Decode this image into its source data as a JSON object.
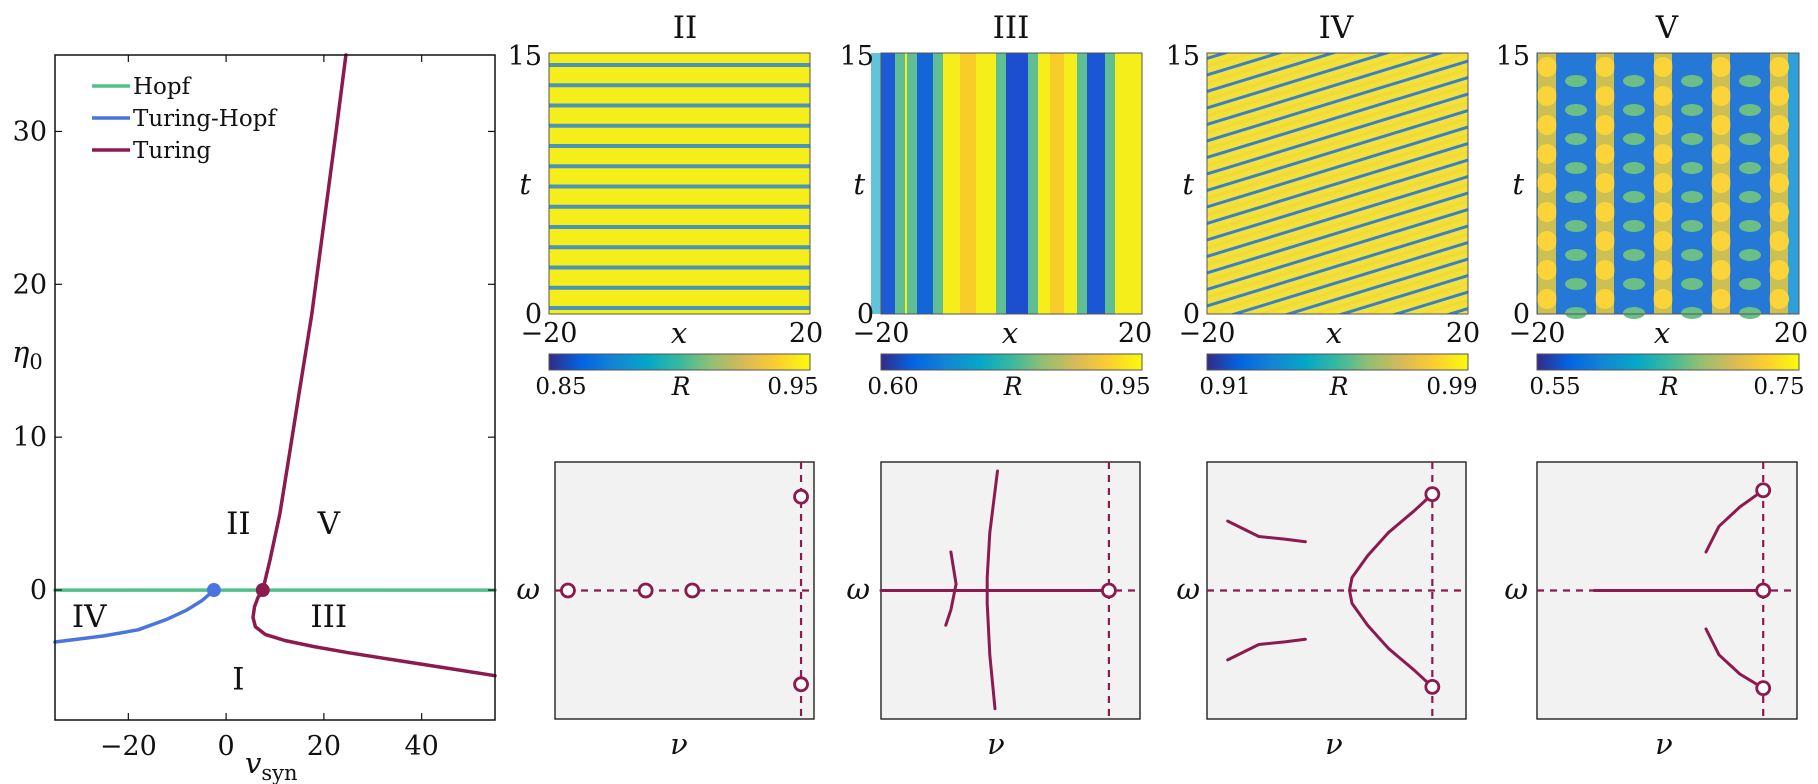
{
  "colors": {
    "hopf": "#52c08e",
    "turing_hopf": "#4a74e0",
    "turing": "#8c1a4f",
    "spectrum_bg": "#f2f2f2"
  },
  "chart_data": [
    {
      "id": "bifurcation",
      "type": "line",
      "xlabel_main": "v",
      "xlabel_sub": "syn",
      "ylabel_main": "η",
      "ylabel_sub": "0",
      "xlim": [
        -35,
        55
      ],
      "ylim": [
        -8.5,
        35
      ],
      "x_ticks": [
        -20,
        0,
        20,
        40
      ],
      "y_ticks": [
        0,
        10,
        20,
        30
      ],
      "legend": {
        "position": "top-left",
        "items": [
          "Hopf",
          "Turing-Hopf",
          "Turing"
        ]
      },
      "series": [
        {
          "name": "Hopf",
          "color_key": "hopf",
          "x": [
            -35,
            55
          ],
          "y": [
            0,
            0
          ]
        },
        {
          "name": "Turing-Hopf",
          "color_key": "turing_hopf",
          "x": [
            -35,
            -25,
            -18,
            -12,
            -8,
            -5,
            -3.5,
            -2.5
          ],
          "y": [
            -3.4,
            -3.0,
            -2.6,
            -1.9,
            -1.3,
            -0.7,
            -0.3,
            0
          ]
        },
        {
          "name": "Turing",
          "color_key": "turing",
          "x": [
            55,
            45,
            35,
            25,
            18,
            12,
            8,
            6,
            5.5,
            5.8,
            6.5,
            7.5,
            9,
            11,
            13,
            15,
            17.5,
            20,
            22.5,
            24.5
          ],
          "y": [
            -5.6,
            -5.1,
            -4.6,
            -4.1,
            -3.7,
            -3.3,
            -2.9,
            -2.4,
            -1.8,
            -1.1,
            -0.5,
            0,
            2,
            5,
            9,
            13,
            18,
            24,
            30,
            35
          ]
        }
      ],
      "points": [
        {
          "x": -2.5,
          "y": 0,
          "color_key": "turing_hopf"
        },
        {
          "x": 7.5,
          "y": 0,
          "color_key": "turing"
        }
      ],
      "regions": [
        {
          "label": "II",
          "x": 2.5,
          "y": 4.4
        },
        {
          "label": "V",
          "x": 21,
          "y": 4.4
        },
        {
          "label": "IV",
          "x": -28,
          "y": -1.7
        },
        {
          "label": "III",
          "x": 21,
          "y": -1.7
        },
        {
          "label": "I",
          "x": 2.5,
          "y": -5.8
        }
      ]
    },
    {
      "id": "spacetime-II",
      "type": "heatmap",
      "title": "II",
      "xlabel": "x",
      "ylabel": "t",
      "xlim": [
        -20,
        20
      ],
      "ylim": [
        0,
        15
      ],
      "pattern": "horizontal-stripes",
      "colorbar": {
        "label": "R",
        "min": "0.85",
        "max": "0.95"
      }
    },
    {
      "id": "spacetime-III",
      "type": "heatmap",
      "title": "III",
      "xlabel": "x",
      "ylabel": "t",
      "xlim": [
        -20,
        20
      ],
      "ylim": [
        0,
        15
      ],
      "pattern": "vertical-stripes",
      "colorbar": {
        "label": "R",
        "min": "0.60",
        "max": "0.95"
      }
    },
    {
      "id": "spacetime-IV",
      "type": "heatmap",
      "title": "IV",
      "xlabel": "x",
      "ylabel": "t",
      "xlim": [
        -20,
        20
      ],
      "ylim": [
        0,
        15
      ],
      "pattern": "traveling-waves",
      "colorbar": {
        "label": "R",
        "min": "0.91",
        "max": "0.99"
      }
    },
    {
      "id": "spacetime-V",
      "type": "heatmap",
      "title": "V",
      "xlabel": "x",
      "ylabel": "t",
      "xlim": [
        -20,
        20
      ],
      "ylim": [
        0,
        15
      ],
      "pattern": "standing-waves",
      "colorbar": {
        "label": "R",
        "min": "0.55",
        "max": "0.75"
      }
    },
    {
      "id": "spectrum-II",
      "type": "scatter",
      "xlabel": "ν",
      "ylabel": "ω",
      "xlim": [
        0,
        1
      ],
      "ylim": [
        -1,
        1
      ],
      "dashed_x": 0.95,
      "curves": [],
      "open_points": [
        [
          0.05,
          0
        ],
        [
          0.35,
          0
        ],
        [
          0.53,
          0
        ],
        [
          0.95,
          0.73
        ],
        [
          0.95,
          -0.73
        ]
      ]
    },
    {
      "id": "spectrum-III",
      "type": "line",
      "xlabel": "ν",
      "ylabel": "ω",
      "xlim": [
        0,
        1
      ],
      "ylim": [
        -1,
        1
      ],
      "dashed_x": 0.88,
      "curves": [
        {
          "x": [
            0,
            0.88
          ],
          "y": [
            0,
            0
          ]
        },
        {
          "x": [
            0.45,
            0.42,
            0.41,
            0.41,
            0.42,
            0.44
          ],
          "y": [
            0.93,
            0.45,
            0.1,
            -0.1,
            -0.5,
            -0.92
          ]
        },
        {
          "x": [
            0.27,
            0.29,
            0.27,
            0.25
          ],
          "y": [
            0.3,
            0.05,
            -0.15,
            -0.27
          ]
        }
      ],
      "open_points": [
        [
          0.88,
          0
        ]
      ]
    },
    {
      "id": "spectrum-IV",
      "type": "line",
      "xlabel": "ν",
      "ylabel": "ω",
      "xlim": [
        0,
        1
      ],
      "ylim": [
        -1,
        1
      ],
      "dashed_x": 0.87,
      "curves": [
        {
          "x": [
            0.87,
            0.8,
            0.7,
            0.62,
            0.56,
            0.55,
            0.56,
            0.62,
            0.7,
            0.8,
            0.87
          ],
          "y": [
            0.75,
            0.62,
            0.45,
            0.27,
            0.1,
            0,
            -0.1,
            -0.27,
            -0.45,
            -0.62,
            -0.75
          ]
        },
        {
          "x": [
            0.08,
            0.2,
            0.3,
            0.38
          ],
          "y": [
            0.54,
            0.42,
            0.4,
            0.38
          ]
        },
        {
          "x": [
            0.08,
            0.2,
            0.3,
            0.38
          ],
          "y": [
            -0.54,
            -0.42,
            -0.4,
            -0.38
          ]
        }
      ],
      "open_points": [
        [
          0.87,
          0.75
        ],
        [
          0.87,
          -0.75
        ]
      ]
    },
    {
      "id": "spectrum-V",
      "type": "line",
      "xlabel": "ν",
      "ylabel": "ω",
      "xlim": [
        0,
        1
      ],
      "ylim": [
        -1,
        1
      ],
      "dashed_x": 0.87,
      "curves": [
        {
          "x": [
            0.22,
            0.87
          ],
          "y": [
            0,
            0
          ]
        },
        {
          "x": [
            0.65,
            0.7,
            0.78,
            0.87
          ],
          "y": [
            0.3,
            0.5,
            0.65,
            0.78
          ]
        },
        {
          "x": [
            0.65,
            0.7,
            0.78,
            0.87
          ],
          "y": [
            -0.3,
            -0.5,
            -0.65,
            -0.76
          ]
        }
      ],
      "open_points": [
        [
          0.87,
          0.78
        ],
        [
          0.87,
          0
        ],
        [
          0.87,
          -0.76
        ]
      ]
    }
  ]
}
